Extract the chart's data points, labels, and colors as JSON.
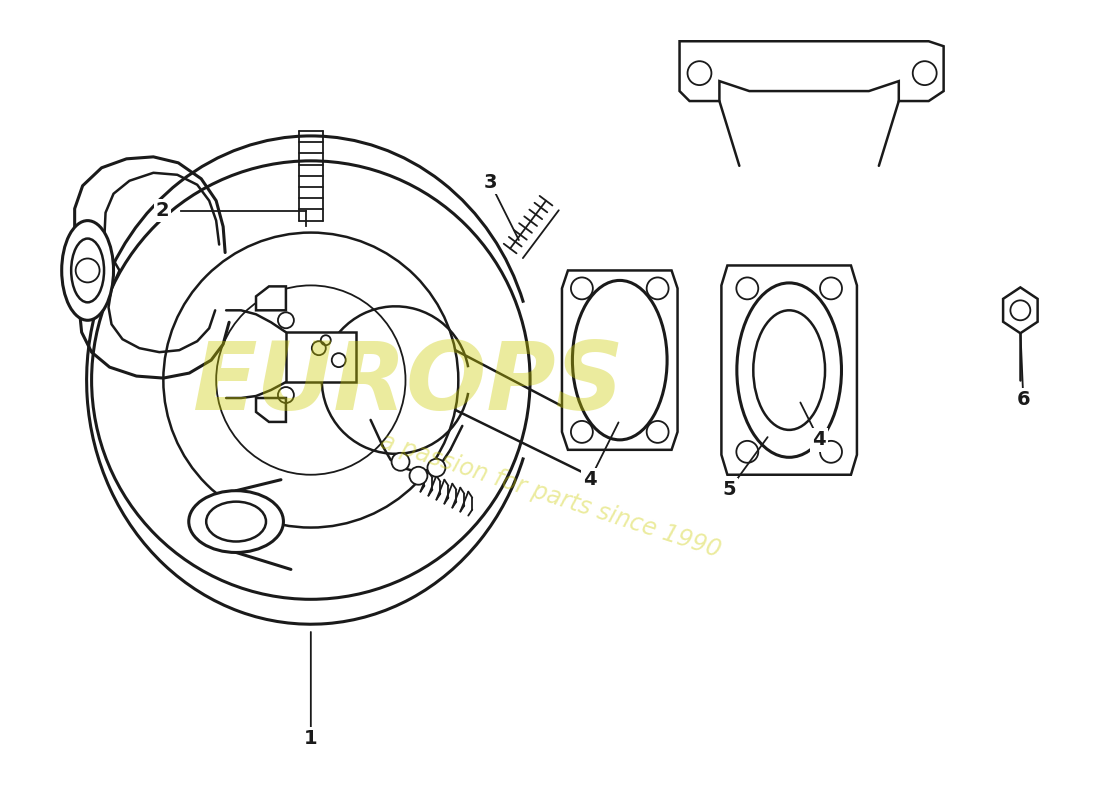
{
  "bg_color": "#ffffff",
  "line_color": "#1a1a1a",
  "wm_color": "#cccc00",
  "wm_alpha": 0.38,
  "lw_thick": 2.2,
  "lw_main": 1.8,
  "lw_thin": 1.3
}
